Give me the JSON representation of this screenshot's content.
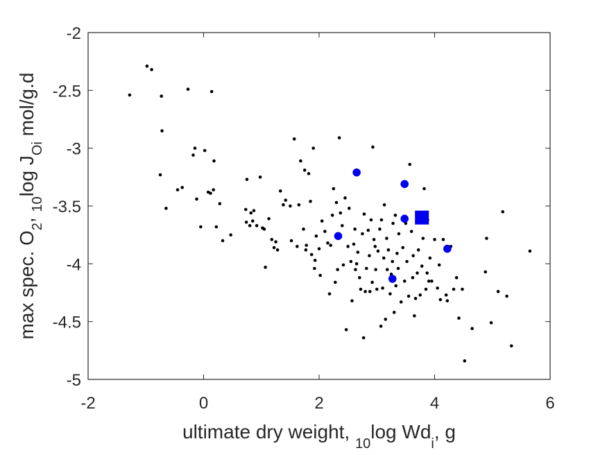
{
  "chart_data": {
    "type": "scatter",
    "title": "",
    "xlabel": {
      "prefix": "ultimate dry weight, ",
      "sub1": "10",
      "mid": "log Wd",
      "sub2": "i",
      "suffix": ", g"
    },
    "ylabel": {
      "prefix": "max spec. O",
      "sub1": "2",
      "mid1": ", ",
      "sub2": "10",
      "mid2": "log J",
      "sub3": "Oi",
      "suffix": " mol/g.d"
    },
    "xlim": [
      -2,
      6
    ],
    "ylim": [
      -5,
      -2
    ],
    "xticks": [
      -2,
      0,
      2,
      4,
      6
    ],
    "xtick_labels": [
      "-2",
      "0",
      "2",
      "4",
      "6"
    ],
    "yticks": [
      -5,
      -4.5,
      -4,
      -3.5,
      -3,
      -2.5,
      -2
    ],
    "ytick_labels": [
      "-5",
      "-4.5",
      "-4",
      "-3.5",
      "-3",
      "-2.5",
      "-2"
    ],
    "grid": false,
    "colors": {
      "points": "#000000",
      "highlight": "#0000ee",
      "axes": "#262626"
    },
    "series": [
      {
        "marker": "dot",
        "points": [
          [
            -1.28,
            -2.54
          ],
          [
            -0.98,
            -2.29
          ],
          [
            -0.9,
            -2.32
          ],
          [
            -0.73,
            -2.55
          ],
          [
            -0.72,
            -2.85
          ],
          [
            -0.75,
            -3.23
          ],
          [
            -0.65,
            -3.52
          ],
          [
            -0.45,
            -3.36
          ],
          [
            -0.37,
            -3.34
          ],
          [
            -0.27,
            -2.49
          ],
          [
            -0.18,
            -3.06
          ],
          [
            -0.15,
            -3.0
          ],
          [
            -0.12,
            -3.44
          ],
          [
            -0.05,
            -3.68
          ],
          [
            0.02,
            -3.02
          ],
          [
            0.08,
            -3.38
          ],
          [
            0.12,
            -3.39
          ],
          [
            0.14,
            -2.51
          ],
          [
            0.17,
            -3.36
          ],
          [
            0.18,
            -3.11
          ],
          [
            0.22,
            -3.68
          ],
          [
            0.28,
            -3.48
          ],
          [
            0.33,
            -3.8
          ],
          [
            0.47,
            -3.75
          ],
          [
            0.75,
            -3.27
          ],
          [
            0.73,
            -3.53
          ],
          [
            0.74,
            -3.64
          ],
          [
            0.8,
            -3.67
          ],
          [
            0.82,
            -3.56
          ],
          [
            0.85,
            -3.63
          ],
          [
            0.87,
            -3.54
          ],
          [
            0.92,
            -3.67
          ],
          [
            0.98,
            -3.25
          ],
          [
            1.02,
            -3.69
          ],
          [
            1.05,
            -3.7
          ],
          [
            1.07,
            -4.03
          ],
          [
            1.13,
            -3.61
          ],
          [
            1.18,
            -3.79
          ],
          [
            1.22,
            -3.86
          ],
          [
            1.25,
            -3.81
          ],
          [
            1.28,
            -3.88
          ],
          [
            1.33,
            -3.37
          ],
          [
            1.38,
            -3.49
          ],
          [
            1.42,
            -3.45
          ],
          [
            1.5,
            -3.5
          ],
          [
            1.52,
            -3.8
          ],
          [
            1.57,
            -2.92
          ],
          [
            1.62,
            -3.85
          ],
          [
            1.65,
            -3.49
          ],
          [
            1.68,
            -3.11
          ],
          [
            1.73,
            -3.7
          ],
          [
            1.75,
            -3.19
          ],
          [
            1.77,
            -3.88
          ],
          [
            1.78,
            -3.84
          ],
          [
            1.82,
            -3.22
          ],
          [
            1.85,
            -3.46
          ],
          [
            1.87,
            -3.92
          ],
          [
            1.9,
            -3.0
          ],
          [
            1.92,
            -4.04
          ],
          [
            1.93,
            -3.97
          ],
          [
            1.95,
            -3.76
          ],
          [
            2.0,
            -3.87
          ],
          [
            2.02,
            -4.1
          ],
          [
            2.05,
            -3.63
          ],
          [
            2.1,
            -3.72
          ],
          [
            2.15,
            -3.82
          ],
          [
            2.18,
            -4.26
          ],
          [
            2.2,
            -3.84
          ],
          [
            2.23,
            -3.58
          ],
          [
            2.25,
            -3.35
          ],
          [
            2.28,
            -4.16
          ],
          [
            2.3,
            -3.47
          ],
          [
            2.32,
            -4.05
          ],
          [
            2.35,
            -2.91
          ],
          [
            2.37,
            -3.56
          ],
          [
            2.4,
            -3.67
          ],
          [
            2.42,
            -4.01
          ],
          [
            2.45,
            -3.43
          ],
          [
            2.47,
            -4.57
          ],
          [
            2.5,
            -3.85
          ],
          [
            2.52,
            -3.52
          ],
          [
            2.55,
            -3.98
          ],
          [
            2.57,
            -4.32
          ],
          [
            2.6,
            -3.83
          ],
          [
            2.62,
            -3.7
          ],
          [
            2.63,
            -4.05
          ],
          [
            2.65,
            -4.0
          ],
          [
            2.67,
            -3.9
          ],
          [
            2.7,
            -4.12
          ],
          [
            2.72,
            -4.22
          ],
          [
            2.75,
            -3.74
          ],
          [
            2.77,
            -4.64
          ],
          [
            2.78,
            -3.57
          ],
          [
            2.8,
            -4.24
          ],
          [
            2.82,
            -4.04
          ],
          [
            2.85,
            -3.71
          ],
          [
            2.87,
            -3.93
          ],
          [
            2.88,
            -4.24
          ],
          [
            2.9,
            -3.62
          ],
          [
            2.92,
            -4.16
          ],
          [
            2.93,
            -2.99
          ],
          [
            2.95,
            -3.79
          ],
          [
            2.97,
            -3.85
          ],
          [
            2.98,
            -4.05
          ],
          [
            3.0,
            -4.22
          ],
          [
            3.02,
            -3.89
          ],
          [
            3.05,
            -3.7
          ],
          [
            3.07,
            -4.54
          ],
          [
            3.08,
            -3.62
          ],
          [
            3.1,
            -4.21
          ],
          [
            3.12,
            -3.95
          ],
          [
            3.13,
            -3.49
          ],
          [
            3.15,
            -4.48
          ],
          [
            3.17,
            -3.78
          ],
          [
            3.18,
            -4.05
          ],
          [
            3.2,
            -3.88
          ],
          [
            3.23,
            -4.26
          ],
          [
            3.25,
            -4.09
          ],
          [
            3.27,
            -3.98
          ],
          [
            3.28,
            -3.65
          ],
          [
            3.3,
            -4.42
          ],
          [
            3.32,
            -3.58
          ],
          [
            3.33,
            -4.19
          ],
          [
            3.35,
            -3.91
          ],
          [
            3.37,
            -4.04
          ],
          [
            3.38,
            -3.74
          ],
          [
            3.42,
            -4.33
          ],
          [
            3.45,
            -3.86
          ],
          [
            3.48,
            -4.15
          ],
          [
            3.5,
            -3.65
          ],
          [
            3.52,
            -3.98
          ],
          [
            3.55,
            -4.28
          ],
          [
            3.57,
            -3.14
          ],
          [
            3.6,
            -3.72
          ],
          [
            3.62,
            -4.12
          ],
          [
            3.63,
            -3.93
          ],
          [
            3.65,
            -4.45
          ],
          [
            3.67,
            -4.3
          ],
          [
            3.7,
            -4.08
          ],
          [
            3.72,
            -3.88
          ],
          [
            3.75,
            -4.27
          ],
          [
            3.78,
            -4.02
          ],
          [
            3.8,
            -3.78
          ],
          [
            3.82,
            -3.35
          ],
          [
            3.85,
            -4.22
          ],
          [
            3.87,
            -4.08
          ],
          [
            3.88,
            -3.62
          ],
          [
            3.9,
            -4.15
          ],
          [
            3.92,
            -3.95
          ],
          [
            3.95,
            -4.15
          ],
          [
            4.0,
            -3.79
          ],
          [
            4.05,
            -4.21
          ],
          [
            4.08,
            -4.01
          ],
          [
            4.1,
            -4.31
          ],
          [
            4.15,
            -3.79
          ],
          [
            4.2,
            -4.27
          ],
          [
            4.22,
            -4.32
          ],
          [
            4.28,
            -3.85
          ],
          [
            4.33,
            -4.22
          ],
          [
            4.38,
            -4.12
          ],
          [
            4.42,
            -4.47
          ],
          [
            4.48,
            -4.22
          ],
          [
            4.52,
            -4.84
          ],
          [
            4.65,
            -4.56
          ],
          [
            4.88,
            -4.07
          ],
          [
            4.9,
            -3.78
          ],
          [
            4.98,
            -4.51
          ],
          [
            5.1,
            -4.24
          ],
          [
            5.18,
            -3.55
          ],
          [
            5.25,
            -4.28
          ],
          [
            5.33,
            -4.71
          ],
          [
            5.65,
            -3.89
          ]
        ]
      },
      {
        "marker": "circle",
        "points": [
          [
            2.33,
            -3.76
          ],
          [
            2.65,
            -3.21
          ],
          [
            3.27,
            -4.13
          ],
          [
            3.48,
            -3.31
          ],
          [
            3.48,
            -3.61
          ],
          [
            4.22,
            -3.87
          ]
        ]
      },
      {
        "marker": "square",
        "points": [
          [
            3.78,
            -3.6
          ]
        ]
      }
    ]
  }
}
